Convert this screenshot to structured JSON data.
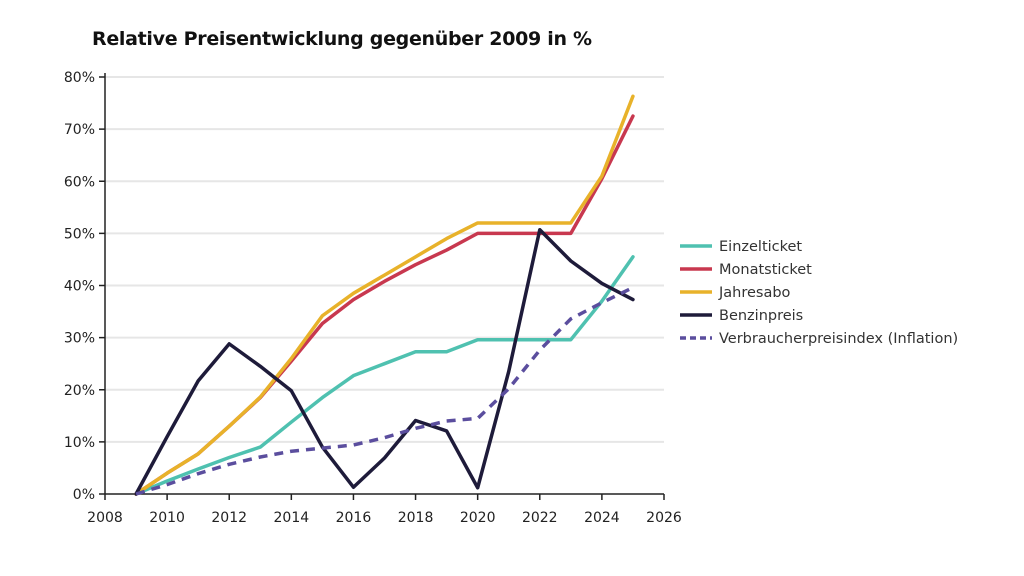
{
  "chart_data": {
    "type": "line",
    "title": "Relative Preisentwicklung gegenüber 2009 in %",
    "xlabel": "",
    "ylabel": "",
    "xlim": [
      2008,
      2026
    ],
    "ylim": [
      0,
      80
    ],
    "x_ticks": [
      "2008",
      "2010",
      "2012",
      "2014",
      "2016",
      "2018",
      "2020",
      "2022",
      "2024",
      "2026"
    ],
    "y_ticks": [
      "0%",
      "10%",
      "20%",
      "30%",
      "40%",
      "50%",
      "60%",
      "70%",
      "80%"
    ],
    "grid": "horizontal",
    "legend_position": "right",
    "x": [
      2009,
      2010,
      2011,
      2012,
      2013,
      2014,
      2015,
      2016,
      2017,
      2018,
      2019,
      2020,
      2021,
      2022,
      2023,
      2024,
      2025
    ],
    "series": [
      {
        "name": "Einzelticket",
        "color": "#4fc1b0",
        "dashed": false,
        "values": [
          0,
          2.5,
          4.8,
          7,
          9,
          13.8,
          18.5,
          22.7,
          25,
          27.3,
          27.3,
          29.6,
          29.6,
          29.6,
          29.6,
          37,
          45.5
        ]
      },
      {
        "name": "Monatsticket",
        "color": "#c8384f",
        "dashed": false,
        "values": [
          0,
          4,
          7.7,
          13,
          18.5,
          25.5,
          32.7,
          37.3,
          40.8,
          44,
          46.8,
          50,
          50,
          50,
          50,
          60.5,
          72.5
        ]
      },
      {
        "name": "Jahresabo",
        "color": "#e8b22a",
        "dashed": false,
        "values": [
          0,
          4,
          7.7,
          13,
          18.6,
          26,
          34.2,
          38.5,
          42,
          45.5,
          49,
          52,
          52,
          52,
          52,
          61,
          76.3
        ]
      },
      {
        "name": "Benzinpreis",
        "color": "#1e1b3a",
        "dashed": false,
        "values": [
          0,
          11,
          21.7,
          28.8,
          24.5,
          19.8,
          9,
          1.3,
          6.9,
          14.1,
          12.1,
          1.2,
          23.5,
          50.7,
          44.7,
          40.4,
          37.3
        ]
      },
      {
        "name": "Verbraucherpreisindex (Inflation)",
        "color": "#5b4e9e",
        "dashed": true,
        "values": [
          0,
          1.8,
          3.9,
          5.7,
          7.1,
          8.2,
          8.8,
          9.4,
          10.8,
          12.6,
          14,
          14.5,
          20.2,
          27.6,
          33.6,
          36.7,
          39.6
        ]
      }
    ]
  }
}
